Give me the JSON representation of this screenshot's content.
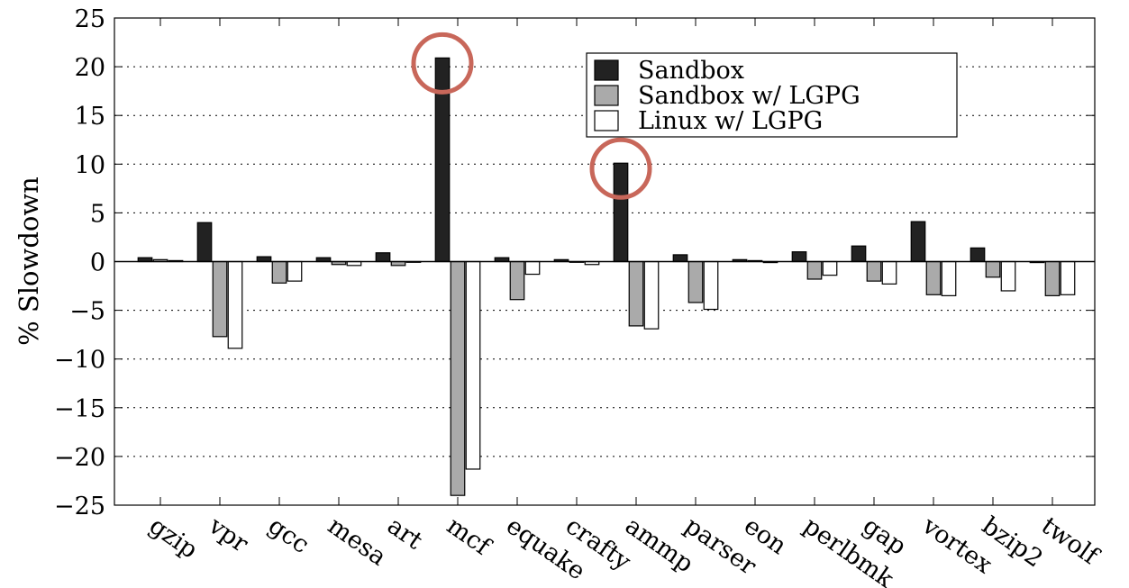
{
  "chart_data": {
    "type": "bar",
    "ylabel": "% Slowdown",
    "xlabel": "",
    "ylim": [
      -25,
      25
    ],
    "yticks": [
      25,
      20,
      15,
      10,
      5,
      0,
      -5,
      -10,
      -15,
      -20,
      -25
    ],
    "ytick_labels": [
      "25",
      "20",
      "15",
      "10",
      "5",
      "0",
      "−5",
      "−10",
      "−15",
      "−20",
      "−25"
    ],
    "grid": "horizontal dotted",
    "legend_position": "top-center",
    "categories": [
      "gzip",
      "vpr",
      "gcc",
      "mesa",
      "art",
      "mcf",
      "equake",
      "crafty",
      "ammp",
      "parser",
      "eon",
      "perlbmk",
      "gap",
      "vortex",
      "bzip2",
      "twolf"
    ],
    "series": [
      {
        "name": "Sandbox",
        "color": "#222222",
        "values": [
          0.4,
          4.0,
          0.5,
          0.4,
          0.9,
          20.9,
          0.4,
          0.2,
          10.1,
          0.7,
          0.2,
          1.0,
          1.6,
          4.1,
          1.4,
          -0.1
        ]
      },
      {
        "name": "Sandbox w/ LGPG",
        "color": "#aaaaaa",
        "values": [
          0.2,
          -7.7,
          -2.2,
          -0.3,
          -0.4,
          -24.0,
          -3.9,
          0.0,
          -6.6,
          -4.2,
          0.1,
          -1.8,
          -2.0,
          -3.4,
          -1.6,
          -3.5
        ]
      },
      {
        "name": "Linux w/ LGPG",
        "color": "#ffffff",
        "values": [
          0.1,
          -8.9,
          -2.0,
          -0.4,
          0.0,
          -21.3,
          -1.3,
          -0.3,
          -6.9,
          -4.9,
          -0.1,
          -1.4,
          -2.3,
          -3.5,
          -3.0,
          -3.4
        ]
      }
    ],
    "highlights": [
      {
        "category": "mcf",
        "series": "Sandbox",
        "color": "#c8675a"
      },
      {
        "category": "ammp",
        "series": "Sandbox",
        "color": "#c8675a"
      }
    ]
  }
}
